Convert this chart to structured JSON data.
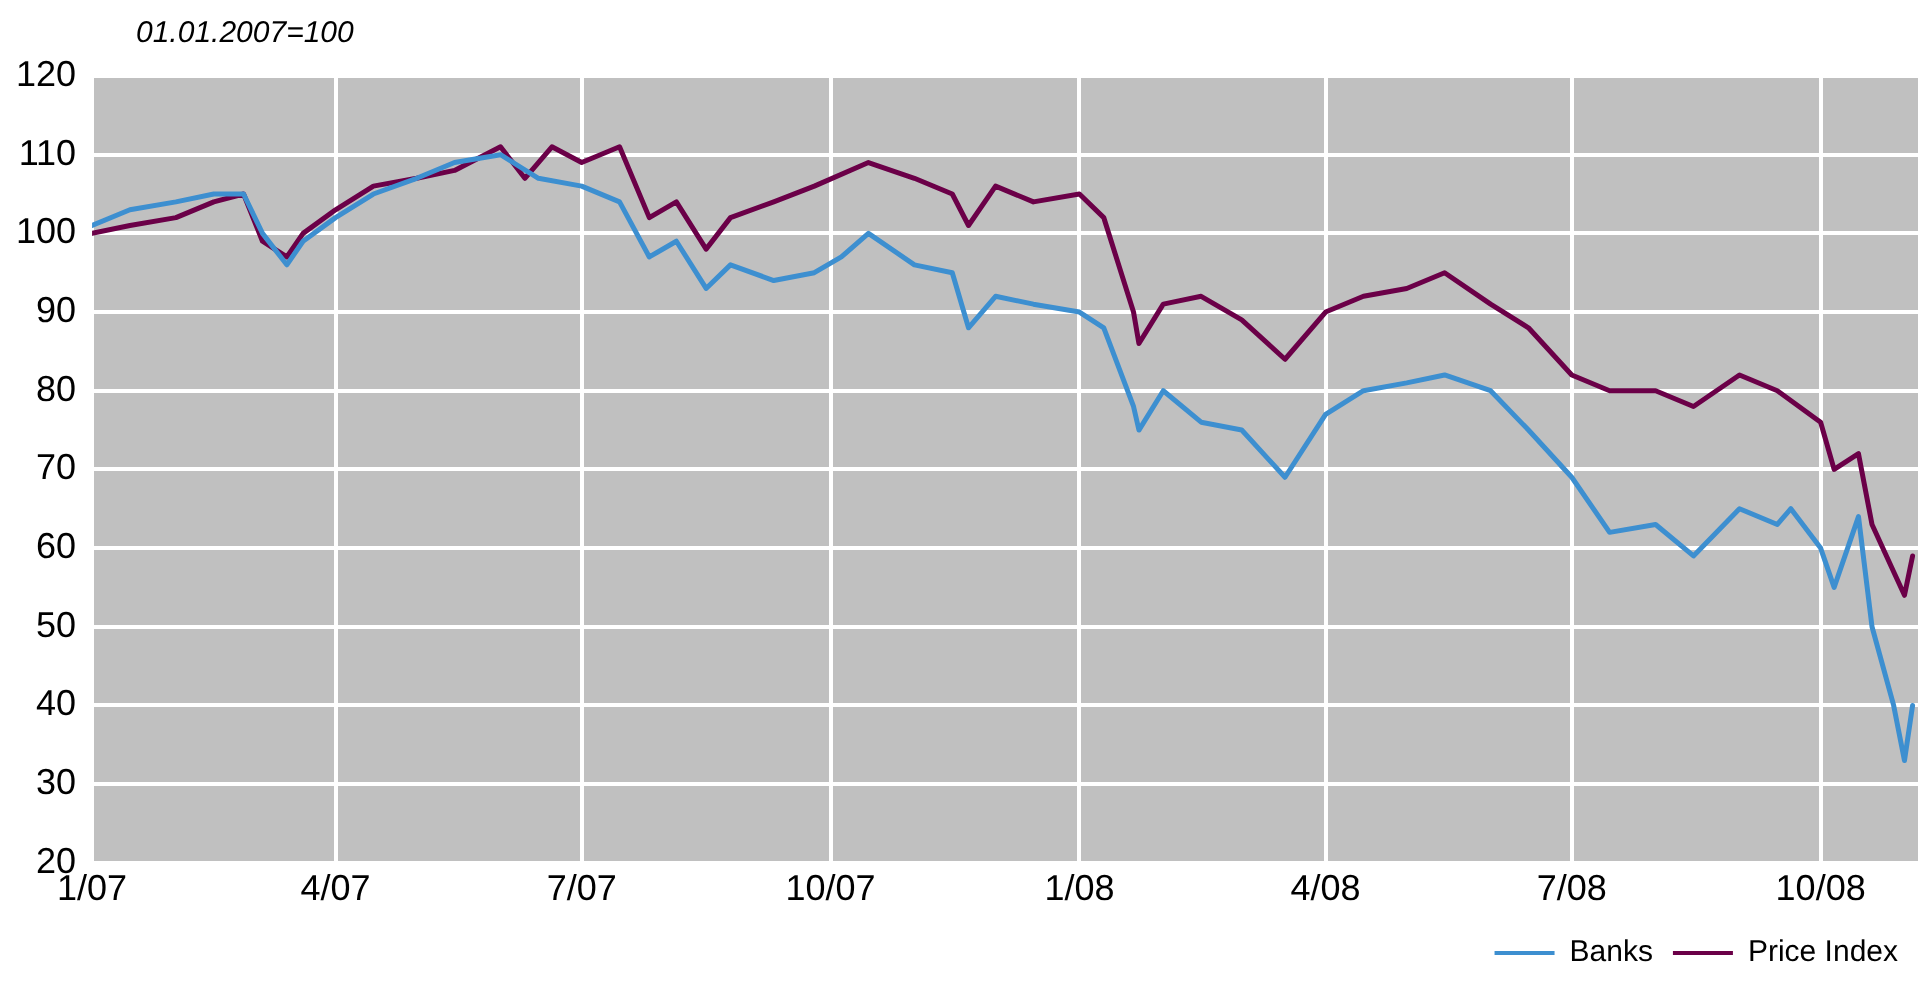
{
  "chart_data": {
    "type": "line",
    "annotations": [
      "01.01.2007=100"
    ],
    "xlim": [
      "2007-01-01",
      "2008-11-06"
    ],
    "xticks": [
      {
        "value": "2007-01-01",
        "label": "1/07"
      },
      {
        "value": "2007-04-01",
        "label": "4/07"
      },
      {
        "value": "2007-07-01",
        "label": "7/07"
      },
      {
        "value": "2007-10-01",
        "label": "10/07"
      },
      {
        "value": "2008-01-01",
        "label": "1/08"
      },
      {
        "value": "2008-04-01",
        "label": "4/08"
      },
      {
        "value": "2008-07-01",
        "label": "7/08"
      },
      {
        "value": "2008-10-01",
        "label": "10/08"
      }
    ],
    "ylim": [
      20,
      120
    ],
    "yticks": [
      20,
      30,
      40,
      50,
      60,
      70,
      80,
      90,
      100,
      110,
      120
    ],
    "grid": true,
    "legend": "bottom right",
    "marker": "none",
    "line_style": "solid",
    "series": [
      {
        "name": "Banks",
        "color": "#3d8fd0",
        "x": [
          "2007-01-01",
          "2007-01-15",
          "2007-02-01",
          "2007-02-15",
          "2007-02-26",
          "2007-03-05",
          "2007-03-14",
          "2007-03-20",
          "2007-04-01",
          "2007-04-15",
          "2007-05-01",
          "2007-05-15",
          "2007-06-01",
          "2007-06-15",
          "2007-07-01",
          "2007-07-15",
          "2007-07-26",
          "2007-08-05",
          "2007-08-16",
          "2007-08-25",
          "2007-09-10",
          "2007-09-25",
          "2007-10-05",
          "2007-10-15",
          "2007-11-01",
          "2007-11-15",
          "2007-11-21",
          "2007-12-01",
          "2007-12-15",
          "2008-01-01",
          "2008-01-10",
          "2008-01-21",
          "2008-01-23",
          "2008-02-01",
          "2008-02-15",
          "2008-03-01",
          "2008-03-17",
          "2008-04-01",
          "2008-04-15",
          "2008-05-01",
          "2008-05-15",
          "2008-06-01",
          "2008-06-15",
          "2008-07-01",
          "2008-07-15",
          "2008-08-01",
          "2008-08-15",
          "2008-09-01",
          "2008-09-15",
          "2008-09-20",
          "2008-10-01",
          "2008-10-06",
          "2008-10-15",
          "2008-10-20",
          "2008-10-28",
          "2008-11-01",
          "2008-11-04"
        ],
        "values": [
          101,
          103,
          104,
          105,
          105,
          100,
          96,
          99,
          102,
          105,
          107,
          109,
          110,
          107,
          106,
          104,
          97,
          99,
          93,
          96,
          94,
          95,
          97,
          100,
          96,
          95,
          88,
          92,
          91,
          90,
          88,
          78,
          75,
          80,
          76,
          75,
          69,
          77,
          80,
          81,
          82,
          80,
          75,
          69,
          62,
          63,
          59,
          65,
          63,
          65,
          60,
          55,
          64,
          50,
          40,
          33,
          40
        ]
      },
      {
        "name": "Price Index",
        "color": "#6b0048",
        "x": [
          "2007-01-01",
          "2007-01-15",
          "2007-02-01",
          "2007-02-15",
          "2007-02-26",
          "2007-03-05",
          "2007-03-14",
          "2007-03-20",
          "2007-04-01",
          "2007-04-15",
          "2007-05-01",
          "2007-05-15",
          "2007-06-01",
          "2007-06-10",
          "2007-06-20",
          "2007-07-01",
          "2007-07-15",
          "2007-07-26",
          "2007-08-05",
          "2007-08-16",
          "2007-08-25",
          "2007-09-10",
          "2007-09-25",
          "2007-10-15",
          "2007-11-01",
          "2007-11-15",
          "2007-11-21",
          "2007-12-01",
          "2007-12-15",
          "2008-01-01",
          "2008-01-10",
          "2008-01-21",
          "2008-01-23",
          "2008-02-01",
          "2008-02-15",
          "2008-03-01",
          "2008-03-17",
          "2008-04-01",
          "2008-04-15",
          "2008-05-01",
          "2008-05-15",
          "2008-06-01",
          "2008-06-15",
          "2008-07-01",
          "2008-07-15",
          "2008-08-01",
          "2008-08-15",
          "2008-09-01",
          "2008-09-15",
          "2008-10-01",
          "2008-10-06",
          "2008-10-15",
          "2008-10-20",
          "2008-10-28",
          "2008-11-01",
          "2008-11-04"
        ],
        "values": [
          100,
          101,
          102,
          104,
          105,
          99,
          97,
          100,
          103,
          106,
          107,
          108,
          111,
          107,
          111,
          109,
          111,
          102,
          104,
          98,
          102,
          104,
          106,
          109,
          107,
          105,
          101,
          106,
          104,
          105,
          102,
          90,
          86,
          91,
          92,
          89,
          84,
          90,
          92,
          93,
          95,
          91,
          88,
          82,
          80,
          80,
          78,
          82,
          80,
          76,
          70,
          72,
          63,
          57,
          54,
          59
        ]
      }
    ]
  }
}
